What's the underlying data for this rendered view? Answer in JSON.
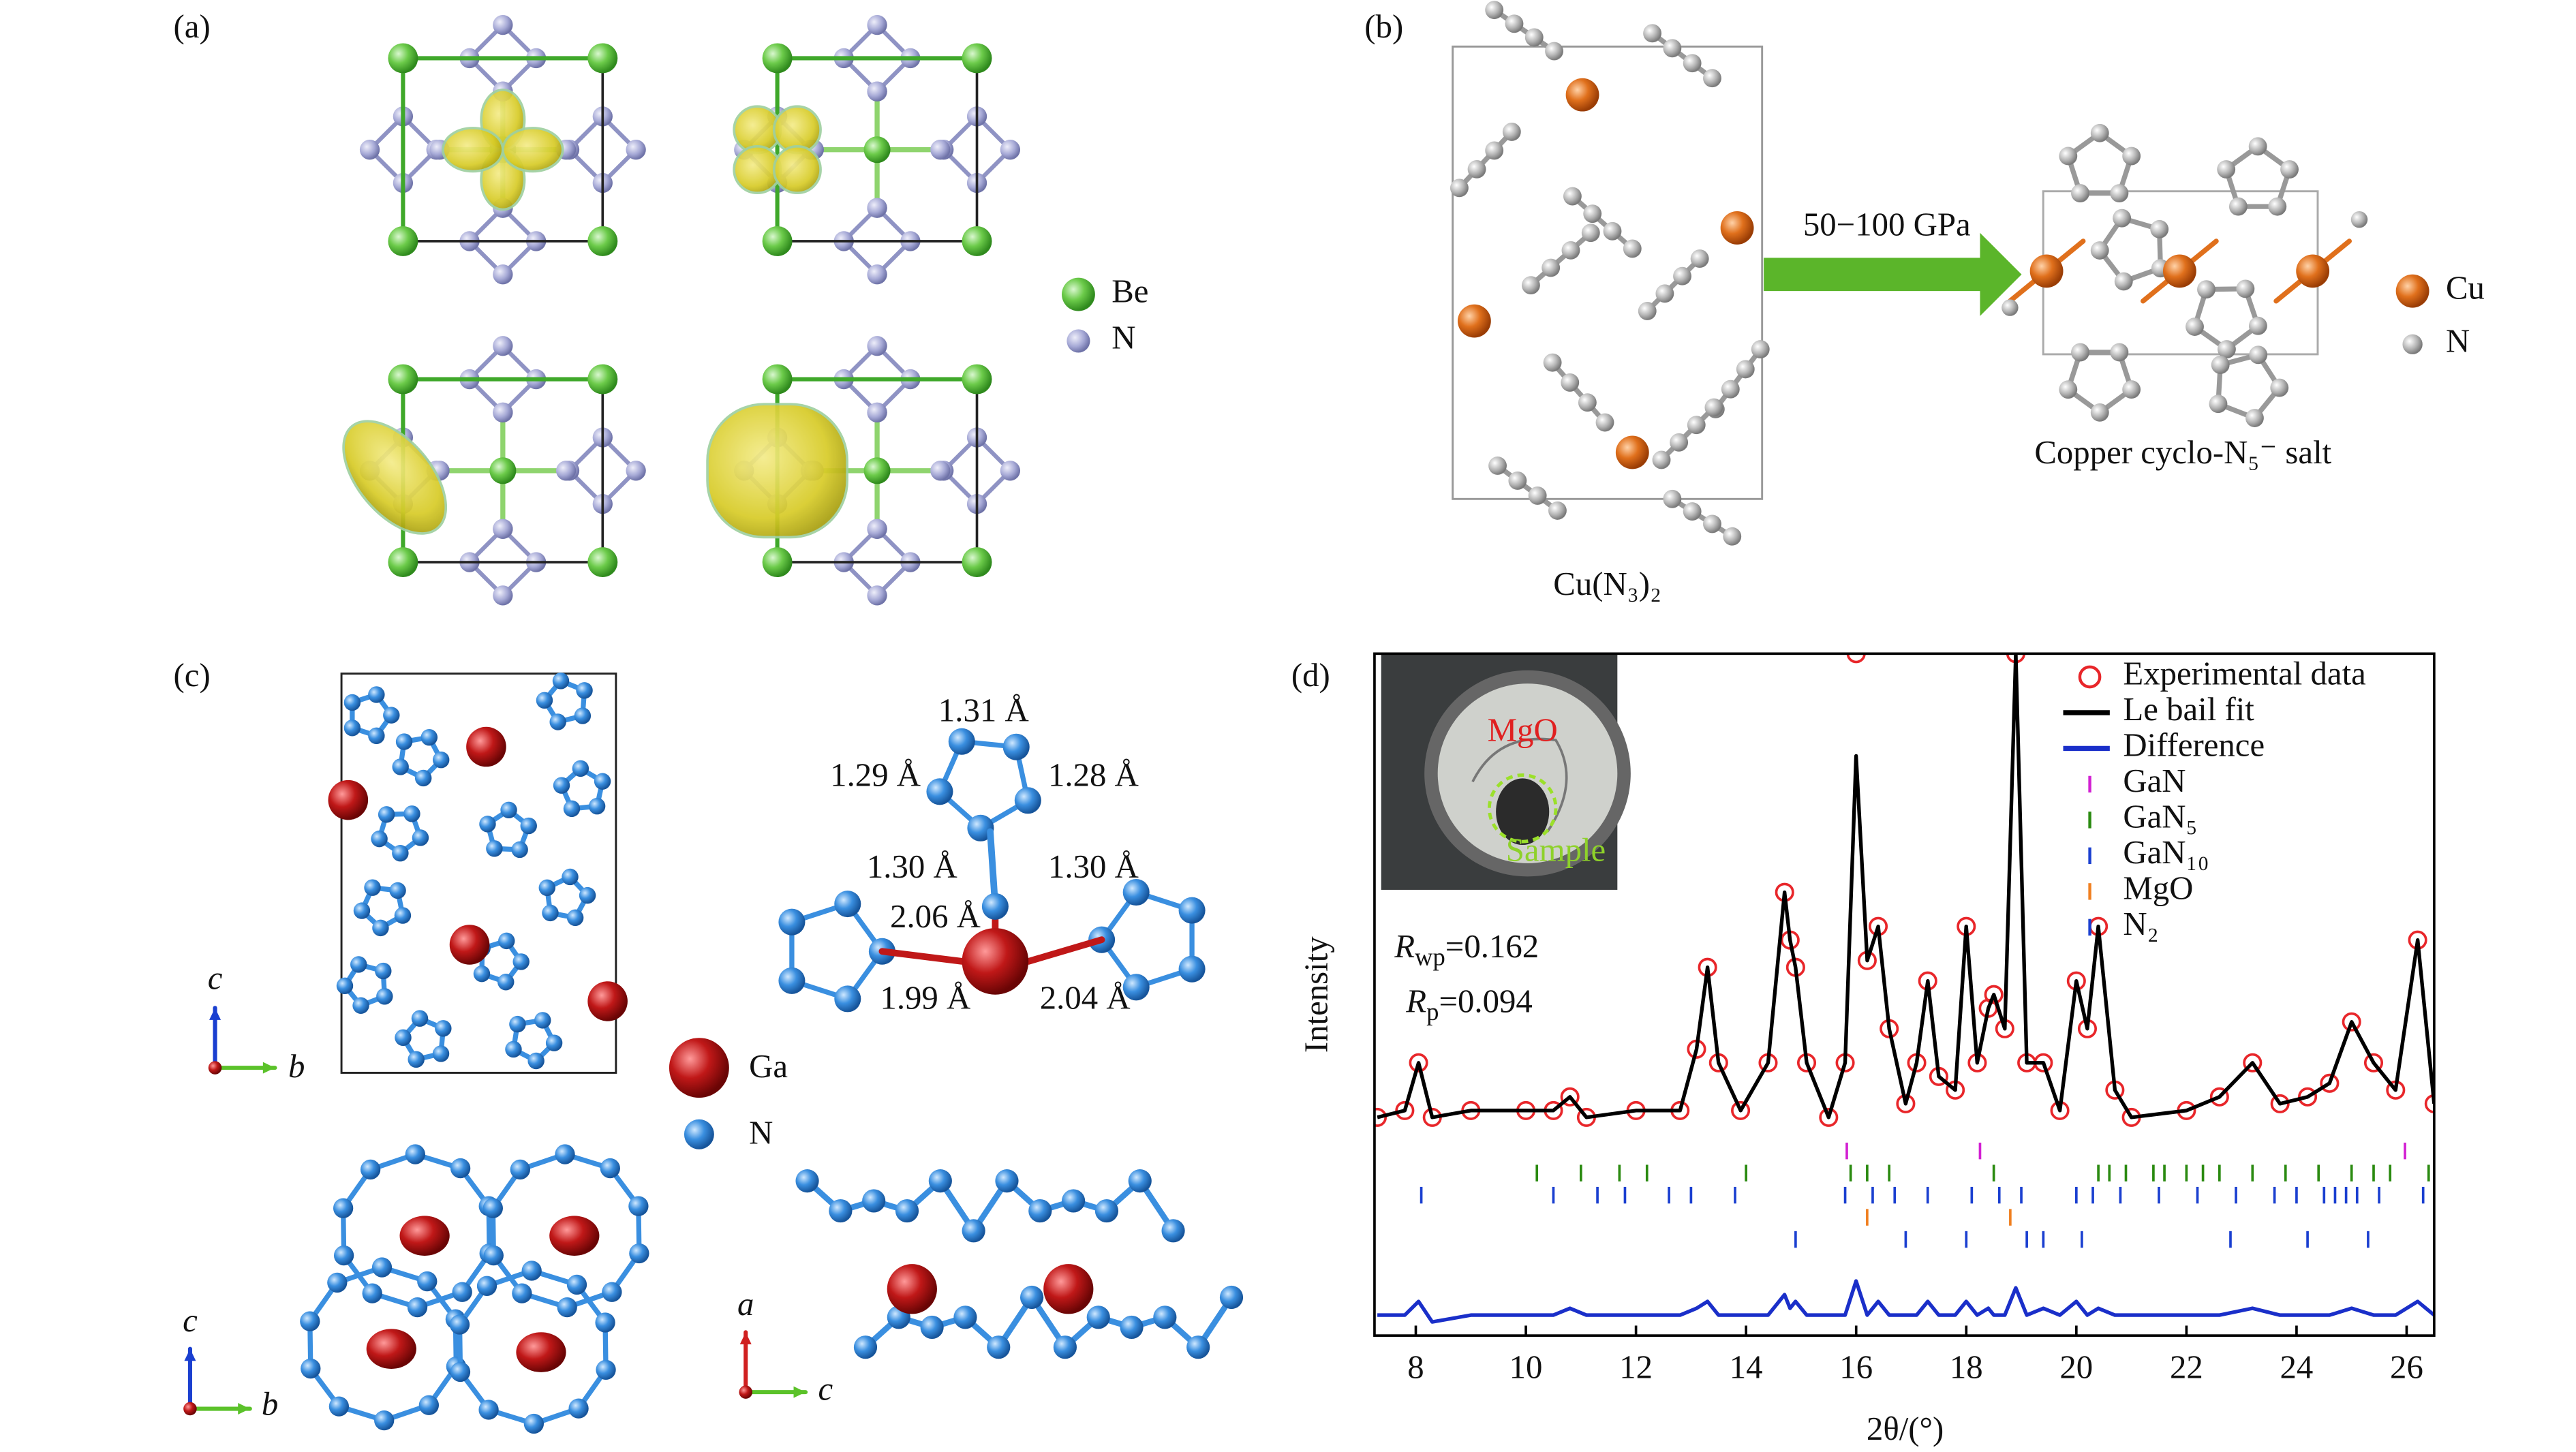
{
  "panels": {
    "a": {
      "label": "(a)",
      "legend": [
        "Be",
        "N"
      ]
    },
    "b": {
      "label": "(b)",
      "pressure": "50−100 GPa",
      "reactant": "Cu(N₃)₂",
      "product": "Copper cyclo-N₅⁻ salt",
      "legend": [
        "Cu",
        "N"
      ]
    },
    "c": {
      "label": "(c)",
      "bond_lengths": [
        "1.31 Å",
        "1.29 Å",
        "1.28 Å",
        "1.30 Å",
        "1.30 Å",
        "2.06 Å",
        "1.99 Å",
        "2.04 Å"
      ],
      "legend": [
        "Ga",
        "N"
      ],
      "axes": [
        "c",
        "b",
        "c",
        "b",
        "a",
        "c"
      ]
    },
    "d": {
      "label": "(d)",
      "inset_labels": [
        "MgO",
        "Sample"
      ],
      "annotations": [
        {
          "symbol": "R",
          "subscript": "wp",
          "value": "=0.162"
        },
        {
          "symbol": "R",
          "subscript": "p",
          "value": "=0.094"
        }
      ]
    }
  },
  "chart_data": {
    "type": "line",
    "x_label": "2θ/(°)",
    "y_label": "Intensity",
    "x": [
      7.3,
      7.8,
      8.05,
      8.3,
      9.0,
      10.0,
      10.5,
      10.8,
      11.1,
      12.0,
      12.8,
      13.1,
      13.3,
      13.5,
      13.9,
      14.4,
      14.7,
      14.8,
      14.9,
      15.1,
      15.5,
      15.8,
      16.0,
      16.2,
      16.4,
      16.6,
      16.9,
      17.1,
      17.3,
      17.5,
      17.8,
      18.0,
      18.2,
      18.4,
      18.5,
      18.7,
      18.9,
      19.1,
      19.4,
      19.7,
      20.0,
      20.2,
      20.4,
      20.7,
      21.0,
      22.0,
      22.6,
      23.2,
      23.7,
      24.2,
      24.6,
      25.0,
      25.4,
      25.8,
      26.2,
      26.5
    ],
    "series": [
      {
        "name": "Experimental data",
        "color": "#e8262a",
        "marker": "circle",
        "values": [
          32,
          33,
          40,
          32,
          33,
          33,
          33,
          35,
          32,
          33,
          33,
          42,
          54,
          40,
          33,
          40,
          65,
          58,
          54,
          40,
          32,
          40,
          100,
          55,
          60,
          45,
          34,
          40,
          52,
          38,
          36,
          60,
          40,
          48,
          50,
          45,
          100,
          40,
          40,
          33,
          52,
          45,
          60,
          36,
          32,
          33,
          35,
          40,
          34,
          35,
          37,
          46,
          40,
          36,
          58,
          34
        ]
      },
      {
        "name": "Le bail fit",
        "color": "#000000",
        "marker": "line",
        "values": [
          32,
          33,
          40,
          32,
          33,
          33,
          33,
          35,
          32,
          33,
          33,
          42,
          54,
          40,
          33,
          40,
          65,
          58,
          54,
          40,
          32,
          40,
          85,
          55,
          60,
          45,
          34,
          40,
          52,
          38,
          36,
          60,
          40,
          48,
          50,
          45,
          100,
          40,
          40,
          33,
          52,
          45,
          60,
          36,
          32,
          33,
          35,
          40,
          34,
          35,
          37,
          46,
          40,
          36,
          58,
          34
        ]
      },
      {
        "name": "Difference",
        "color": "#1a2fc9",
        "marker": "line",
        "values": [
          3,
          3,
          5,
          2,
          3,
          3,
          3,
          4,
          3,
          3,
          3,
          4,
          5,
          3,
          3,
          3,
          6,
          4,
          5,
          3,
          3,
          3,
          8,
          3,
          5,
          3,
          3,
          3,
          5,
          3,
          3,
          5,
          3,
          4,
          3,
          3,
          7,
          3,
          4,
          3,
          5,
          3,
          4,
          3,
          3,
          3,
          3,
          4,
          3,
          3,
          3,
          4,
          3,
          3,
          5,
          3
        ]
      }
    ],
    "reflections": [
      {
        "name": "GaN",
        "color": "#d21fd2",
        "positions": [
          15.83,
          18.25,
          25.97
        ]
      },
      {
        "name": "GaN₅",
        "color": "#2a8a10",
        "positions": [
          10.2,
          11.0,
          11.7,
          12.2,
          14.0,
          15.9,
          16.2,
          16.6,
          18.5,
          20.4,
          20.6,
          20.9,
          21.4,
          21.6,
          22.0,
          22.3,
          22.6,
          23.2,
          23.8,
          24.4,
          25.0,
          25.4,
          25.7,
          26.4
        ]
      },
      {
        "name": "GaN₁₀",
        "color": "#1a3fd0",
        "positions": [
          8.1,
          10.5,
          11.3,
          11.8,
          12.6,
          13.0,
          13.8,
          15.8,
          16.3,
          16.7,
          17.3,
          18.1,
          18.6,
          19.0,
          20.0,
          20.3,
          20.8,
          21.5,
          22.2,
          22.9,
          23.6,
          24.0,
          24.5,
          24.7,
          24.9,
          25.1,
          25.5,
          26.3
        ]
      },
      {
        "name": "MgO",
        "color": "#f07f20",
        "positions": [
          16.2,
          18.8
        ]
      },
      {
        "name": "N₂",
        "color": "#1a3fd0",
        "positions": [
          14.9,
          16.9,
          18.0,
          19.1,
          19.4,
          20.1,
          22.8,
          24.2,
          25.3
        ]
      }
    ],
    "xlim": [
      7.25,
      26.5
    ],
    "xticks": [
      8,
      10,
      12,
      14,
      16,
      18,
      20,
      22,
      24,
      26
    ],
    "ylim": [
      0,
      100
    ]
  }
}
